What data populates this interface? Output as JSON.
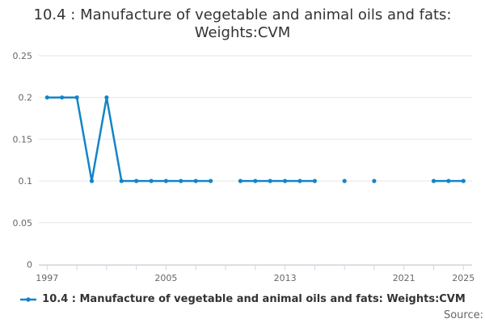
{
  "title": "10.4 : Manufacture of vegetable and animal oils and fats: Weights:CVM",
  "source": {
    "label": "Source:"
  },
  "legend": {
    "position": "bottom",
    "items": [
      {
        "label": "10.4 : Manufacture of vegetable and animal oils and fats: Weights:CVM",
        "marker": "line-with-dot-icon",
        "color": "#1385c6"
      }
    ]
  },
  "colors": {
    "series": "#1385c6",
    "grid": "#e6e6e6",
    "axis": "#ccd6eb",
    "tick_label": "#666666",
    "title": "#333333",
    "legend_text": "#333333",
    "source_text": "#666666",
    "background": "#ffffff"
  },
  "chart_data": {
    "type": "line",
    "title": "10.4 : Manufacture of vegetable and animal oils and fats: Weights:CVM",
    "xlabel": "",
    "ylabel": "",
    "x": [
      1997,
      1998,
      1999,
      2000,
      2001,
      2002,
      2003,
      2004,
      2005,
      2006,
      2007,
      2008,
      2009,
      2010,
      2011,
      2012,
      2013,
      2014,
      2015,
      2016,
      2017,
      2018,
      2019,
      2020,
      2021,
      2022,
      2023,
      2024,
      2025
    ],
    "series": [
      {
        "name": "10.4 : Manufacture of vegetable and animal oils and fats: Weights:CVM",
        "color": "#1385c6",
        "values": [
          0.2,
          0.2,
          0.2,
          0.1,
          0.2,
          0.1,
          0.1,
          0.1,
          0.1,
          0.1,
          0.1,
          0.1,
          null,
          0.1,
          0.1,
          0.1,
          0.1,
          0.1,
          0.1,
          null,
          0.1,
          null,
          0.1,
          null,
          null,
          null,
          0.1,
          0.1,
          0.1
        ]
      }
    ],
    "missing_years": [
      2009,
      2016,
      2018,
      2020,
      2021,
      2022
    ],
    "xlim": [
      1997,
      2025
    ],
    "ylim": [
      0,
      0.25
    ],
    "yticks": [
      0,
      0.05,
      0.1,
      0.15,
      0.2,
      0.25
    ],
    "ytick_labels": [
      "0",
      "0.05",
      "0.1",
      "0.15",
      "0.2",
      "0.25"
    ],
    "xtick_step": 2,
    "xtick_labeled": [
      1997,
      2005,
      2013,
      2021,
      2025
    ],
    "grid": true,
    "marker": "dot",
    "legend_position": "bottom"
  }
}
